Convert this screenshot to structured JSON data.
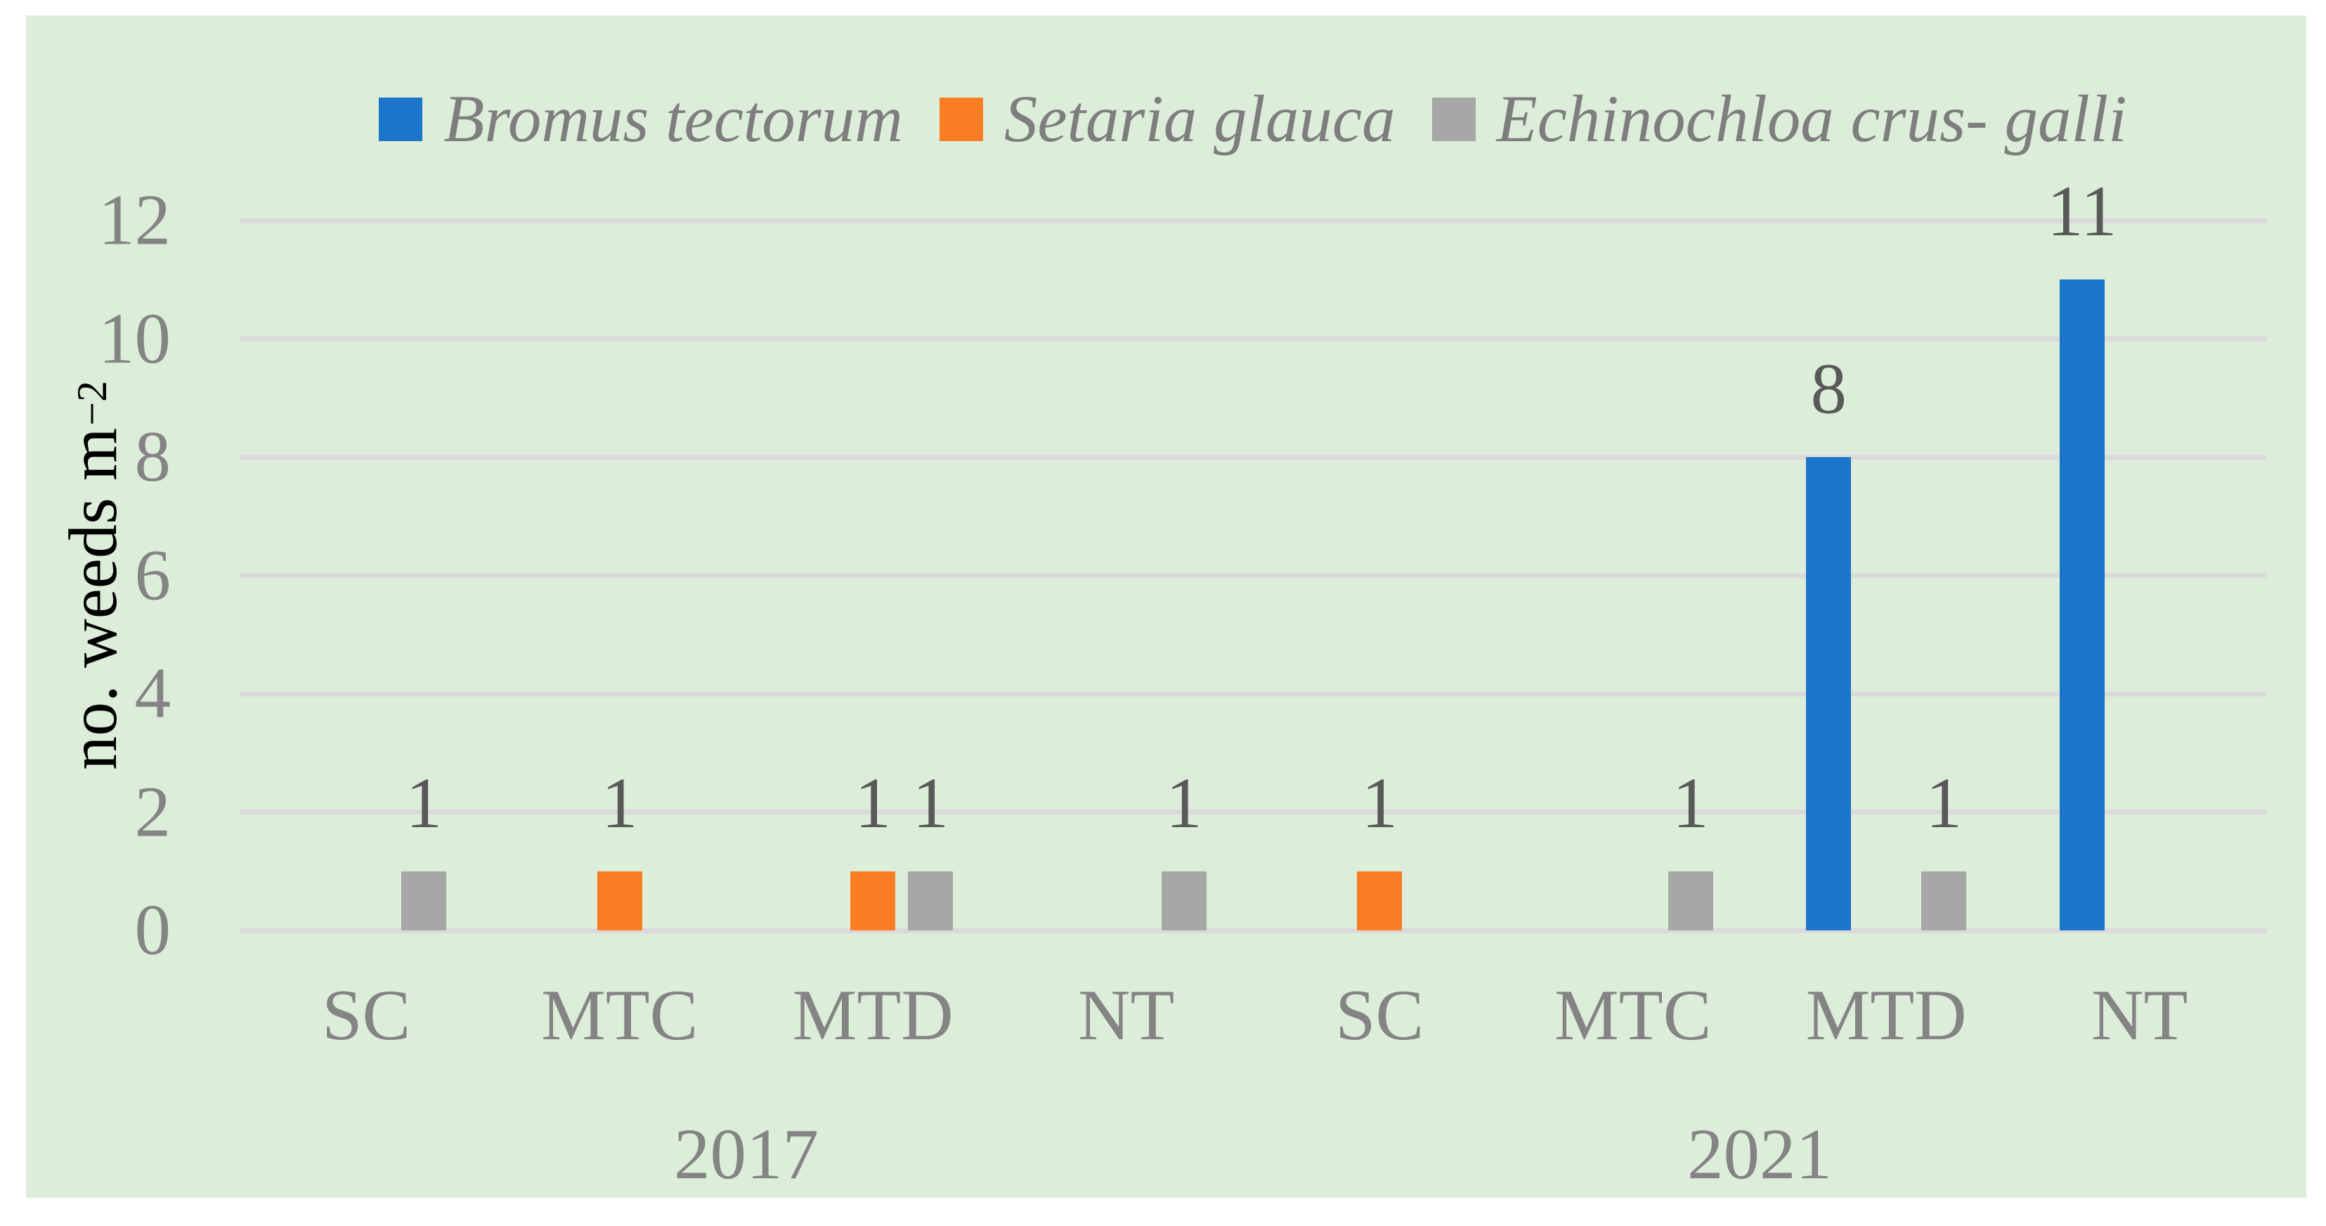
{
  "colors": {
    "panel_background": "#DCEDD9",
    "gridline": "#DBD9DC",
    "axis_text": "#848484",
    "data_label_text": "#595959",
    "legend_text": "#7E7E7E",
    "y_title_text": "#000000",
    "series_blue": "#1B75C8",
    "series_orange": "#FB7D23",
    "series_gray": "#A7A7A7"
  },
  "chart_data": {
    "type": "bar",
    "title": "",
    "xlabel": "",
    "ylabel_parts": {
      "text": "no. weeds m",
      "superscript": "−2"
    },
    "ylim": [
      0,
      12
    ],
    "yticks": [
      0,
      2,
      4,
      6,
      8,
      10,
      12
    ],
    "grid": true,
    "legend_position": "top",
    "categories": [
      "SC",
      "MTC",
      "MTD",
      "NT",
      "SC",
      "MTC",
      "MTD",
      "NT"
    ],
    "year_groups": [
      {
        "label": "2017",
        "span": 4
      },
      {
        "label": "2021",
        "span": 4
      }
    ],
    "series": [
      {
        "name": "Bromus tectorum",
        "color": "#1B75C8",
        "values": [
          0,
          0,
          0,
          0,
          0,
          0,
          8,
          11
        ]
      },
      {
        "name": "Setaria glauca",
        "color": "#FB7D23",
        "values": [
          0,
          1,
          1,
          0,
          1,
          0,
          0,
          0
        ]
      },
      {
        "name": "Echinochloa crus- galli",
        "color": "#A7A7A7",
        "values": [
          1,
          0,
          1,
          1,
          0,
          1,
          1,
          0
        ]
      }
    ],
    "data_labels_shown_for_nonzero": true
  }
}
